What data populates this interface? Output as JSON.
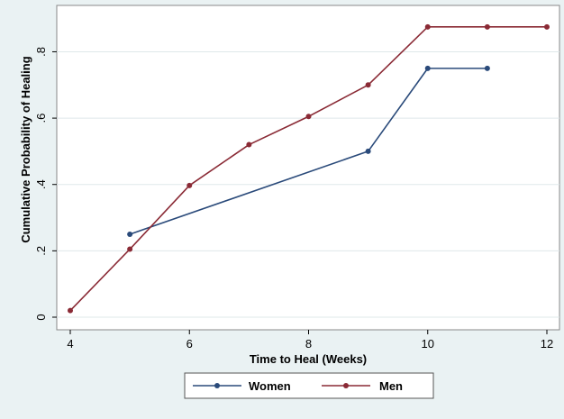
{
  "chart_data": {
    "type": "line",
    "xlabel": "Time to Heal (Weeks)",
    "ylabel": "Cumulative Probability of Healing",
    "xlim": [
      4,
      12
    ],
    "ylim": [
      0,
      0.88
    ],
    "x_ticks": [
      4,
      6,
      8,
      10,
      12
    ],
    "x_tick_labels": [
      "4",
      "6",
      "8",
      "10",
      "12"
    ],
    "y_ticks": [
      0,
      0.2,
      0.4,
      0.6,
      0.8
    ],
    "y_tick_labels": [
      "0",
      ".2",
      ".4",
      ".6",
      ".8"
    ],
    "grid": "horizontal",
    "legend_position": "bottom",
    "series": [
      {
        "name": "Women",
        "color": "#2a4a7a",
        "x": [
          5,
          9,
          10,
          11
        ],
        "y": [
          0.25,
          0.5,
          0.75,
          0.75
        ]
      },
      {
        "name": "Men",
        "color": "#8a2a35",
        "x": [
          4,
          5,
          6,
          7,
          8,
          9,
          10,
          11,
          12
        ],
        "y": [
          0.02,
          0.205,
          0.397,
          0.52,
          0.605,
          0.7,
          0.875,
          0.875,
          0.875
        ]
      }
    ]
  }
}
